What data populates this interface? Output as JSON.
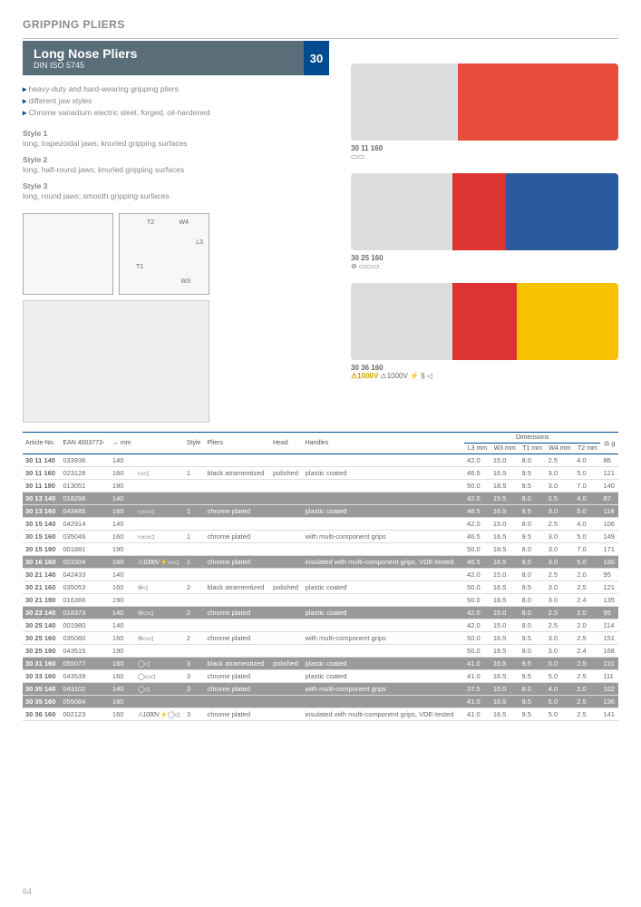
{
  "category": "GRIPPING PLIERS",
  "title": "Long Nose Pliers",
  "subtitle": "DIN ISO 5745",
  "badge": "30",
  "features": [
    "heavy-duty and hard-wearing gripping pliers",
    "different jaw styles",
    "Chrome vanadium electric steel, forged, oil-hardened"
  ],
  "styles": [
    {
      "h": "Style 1",
      "d": "long, trapezoidal jaws; knurled gripping surfaces"
    },
    {
      "h": "Style 2",
      "d": "long, half-round jaws; knurled gripping surfaces"
    },
    {
      "h": "Style 3",
      "d": "long, round jaws; smooth gripping surfaces"
    }
  ],
  "diag_labels": {
    "t1": "T1",
    "t2": "T2",
    "w3": "W3",
    "w4": "W4",
    "l3": "L3"
  },
  "product_captions": [
    {
      "code": "30 11 160",
      "extra": "▭▭"
    },
    {
      "code": "30 25 160",
      "extra": "⊖ ▭▭▭"
    },
    {
      "code": "30 36 160",
      "extra": "⚠1000V ⚡ § ◁",
      "hv": true
    }
  ],
  "th": {
    "article": "Article-No.",
    "ean": "EAN\n4003773-",
    "len": "↔\nmm",
    "style": "Style",
    "pliers": "Pliers",
    "head": "Head",
    "handles": "Handles",
    "dimhead": "Dimensions",
    "l3": "L3\nmm",
    "w3": "W3\nmm",
    "t1": "T1\nmm",
    "w4": "W4\nmm",
    "t2": "T2\nmm",
    "wt": "⚖\ng"
  },
  "rows": [
    {
      "a": "30 11 140",
      "e": "033936",
      "l": "140",
      "ic": "",
      "s": "",
      "p": "",
      "h": "",
      "hd": "",
      "d": [
        "42.0",
        "15.0",
        "8.0",
        "2.5",
        "4.0",
        "86"
      ]
    },
    {
      "a": "30 11 160",
      "e": "023128",
      "l": "160",
      "ic": "▭◁",
      "s": "1",
      "p": "black atramentized",
      "h": "polished",
      "hd": "plastic coated",
      "d": [
        "46.5",
        "16.5",
        "9.5",
        "3.0",
        "5.0",
        "121"
      ]
    },
    {
      "a": "30 11 190",
      "e": "013051",
      "l": "190",
      "ic": "",
      "s": "",
      "p": "",
      "h": "",
      "hd": "",
      "d": [
        "50.0",
        "18.5",
        "9.5",
        "3.0",
        "7.0",
        "140"
      ]
    },
    {
      "g": 1,
      "a": "30 13 140",
      "e": "018298",
      "l": "140",
      "ic": "",
      "s": "",
      "p": "",
      "h": "",
      "hd": "",
      "d": [
        "42.0",
        "15.5",
        "8.0",
        "2.5",
        "4.0",
        "87"
      ]
    },
    {
      "g": 1,
      "a": "30 13 160",
      "e": "043485",
      "l": "160",
      "ic": "▭▭◁",
      "s": "1",
      "p": "chrome plated",
      "h": "",
      "hd": "plastic coated",
      "d": [
        "46.5",
        "16.5",
        "9.5",
        "3.0",
        "5.0",
        "118"
      ]
    },
    {
      "a": "30 15 140",
      "e": "042914",
      "l": "140",
      "ic": "",
      "s": "",
      "p": "",
      "h": "",
      "hd": "",
      "d": [
        "42.0",
        "15.0",
        "8.0",
        "2.5",
        "4.0",
        "106"
      ]
    },
    {
      "a": "30 15 160",
      "e": "035046",
      "l": "160",
      "ic": "▭▭◁",
      "s": "1",
      "p": "chrome plated",
      "h": "",
      "hd": "with multi-component grips",
      "d": [
        "46.5",
        "16.5",
        "9.5",
        "3.0",
        "5.0",
        "149"
      ]
    },
    {
      "a": "30 15 190",
      "e": "001881",
      "l": "190",
      "ic": "",
      "s": "",
      "p": "",
      "h": "",
      "hd": "",
      "d": [
        "50.0",
        "18.5",
        "8.0",
        "3.0",
        "7.0",
        "171"
      ]
    },
    {
      "g": 1,
      "a": "30 16 160",
      "e": "021504",
      "l": "160",
      "ic": "⚠1000V ⚡▭◁",
      "s": "1",
      "p": "chrome plated",
      "h": "",
      "hd": "insulated with multi-component grips, VDE-tested",
      "d": [
        "46.5",
        "16.5",
        "9.5",
        "3.0",
        "5.0",
        "150"
      ]
    },
    {
      "a": "30 21 140",
      "e": "042433",
      "l": "140",
      "ic": "",
      "s": "",
      "p": "",
      "h": "",
      "hd": "",
      "d": [
        "42.0",
        "15.0",
        "8.0",
        "2.5",
        "2.0",
        "95"
      ]
    },
    {
      "a": "30 21 160",
      "e": "035053",
      "l": "160",
      "ic": "⊖◁",
      "s": "2",
      "p": "black atramentized",
      "h": "polished",
      "hd": "plastic coated",
      "d": [
        "50.0",
        "16.5",
        "9.5",
        "3.0",
        "2.5",
        "121"
      ]
    },
    {
      "a": "30 21 190",
      "e": "016366",
      "l": "190",
      "ic": "",
      "s": "",
      "p": "",
      "h": "",
      "hd": "",
      "d": [
        "50.0",
        "18.5",
        "8.0",
        "3.0",
        "2.4",
        "135"
      ]
    },
    {
      "g": 1,
      "a": "30 23 140",
      "e": "018373",
      "l": "140",
      "ic": "⊖▭◁",
      "s": "2",
      "p": "chrome plated",
      "h": "",
      "hd": "plastic coated",
      "d": [
        "42.0",
        "15.0",
        "8.0",
        "2.5",
        "2.0",
        "95"
      ]
    },
    {
      "a": "30 25 140",
      "e": "001980",
      "l": "140",
      "ic": "",
      "s": "",
      "p": "",
      "h": "",
      "hd": "",
      "d": [
        "42.0",
        "15.0",
        "8.0",
        "2.5",
        "2.0",
        "114"
      ]
    },
    {
      "a": "30 25 160",
      "e": "035060",
      "l": "160",
      "ic": "⊖▭◁",
      "s": "2",
      "p": "chrome plated",
      "h": "",
      "hd": "with multi-component grips",
      "d": [
        "50.0",
        "16.5",
        "9.5",
        "3.0",
        "2.5",
        "151"
      ]
    },
    {
      "a": "30 25 190",
      "e": "043515",
      "l": "190",
      "ic": "",
      "s": "",
      "p": "",
      "h": "",
      "hd": "",
      "d": [
        "50.0",
        "18.5",
        "8.0",
        "3.0",
        "2.4",
        "168"
      ]
    },
    {
      "g": 1,
      "a": "30 31 160",
      "e": "055077",
      "l": "160",
      "ic": "◯◁",
      "s": "3",
      "p": "black atramentized",
      "h": "polished",
      "hd": "plastic coated",
      "d": [
        "41.0",
        "16.5",
        "9.5",
        "5.0",
        "2.5",
        "110"
      ]
    },
    {
      "a": "30 33 160",
      "e": "043539",
      "l": "160",
      "ic": "◯▭◁",
      "s": "3",
      "p": "chrome plated",
      "h": "",
      "hd": "plastic coated",
      "d": [
        "41.0",
        "16.5",
        "9.5",
        "5.0",
        "2.5",
        "111"
      ]
    },
    {
      "g": 1,
      "a": "30 35 140",
      "e": "043102",
      "l": "140",
      "ic": "◯◁",
      "s": "3",
      "p": "chrome plated",
      "h": "",
      "hd": "with multi-component grips",
      "d": [
        "37.5",
        "15.0",
        "8.0",
        "4.0",
        "2.0",
        "102"
      ]
    },
    {
      "g": 1,
      "a": "30 35 160",
      "e": "055084",
      "l": "160",
      "ic": "",
      "s": "",
      "p": "",
      "h": "",
      "hd": "",
      "d": [
        "41.0",
        "16.5",
        "9.5",
        "5.0",
        "2.5",
        "136"
      ]
    },
    {
      "a": "30 36 160",
      "e": "002123",
      "l": "160",
      "ic": "⚠1000V ⚡◯◁",
      "s": "3",
      "p": "chrome plated",
      "h": "",
      "hd": "insulated with multi-component grips, VDE-tested",
      "d": [
        "41.0",
        "16.5",
        "9.5",
        "5.0",
        "2.5",
        "141"
      ]
    }
  ],
  "page": "64"
}
